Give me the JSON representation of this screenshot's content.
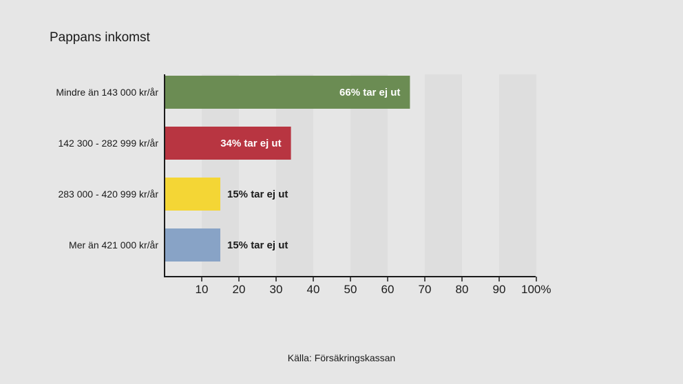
{
  "title": "Pappans inkomst",
  "source": "Källa: Försäkringskassan",
  "chart_data": {
    "type": "bar",
    "orientation": "horizontal",
    "categories": [
      "Mindre än 143 000 kr/år",
      "142 300 - 282 999 kr/år",
      "283 000 - 420 999 kr/år",
      "Mer än 421 000 kr/år"
    ],
    "values": [
      66,
      34,
      15,
      15
    ],
    "data_labels": [
      "66% tar ej ut",
      "34% tar ej ut",
      "15% tar ej ut",
      "15% tar ej ut"
    ],
    "colors": [
      "#6b8c53",
      "#b83541",
      "#f4d635",
      "#88a3c6"
    ],
    "data_label_colors": [
      "#ffffff",
      "#ffffff",
      "#1a1a1a",
      "#1a1a1a"
    ],
    "data_label_position": [
      "inside",
      "inside",
      "outside",
      "outside"
    ],
    "xlim": [
      0,
      100
    ],
    "xticks": [
      10,
      20,
      30,
      40,
      50,
      60,
      70,
      80,
      90,
      100
    ],
    "xtick_labels": [
      "10",
      "20",
      "30",
      "40",
      "50",
      "60",
      "70",
      "80",
      "90",
      "100%"
    ],
    "grid": "alternating vertical bands",
    "band_color": "#dedede"
  }
}
